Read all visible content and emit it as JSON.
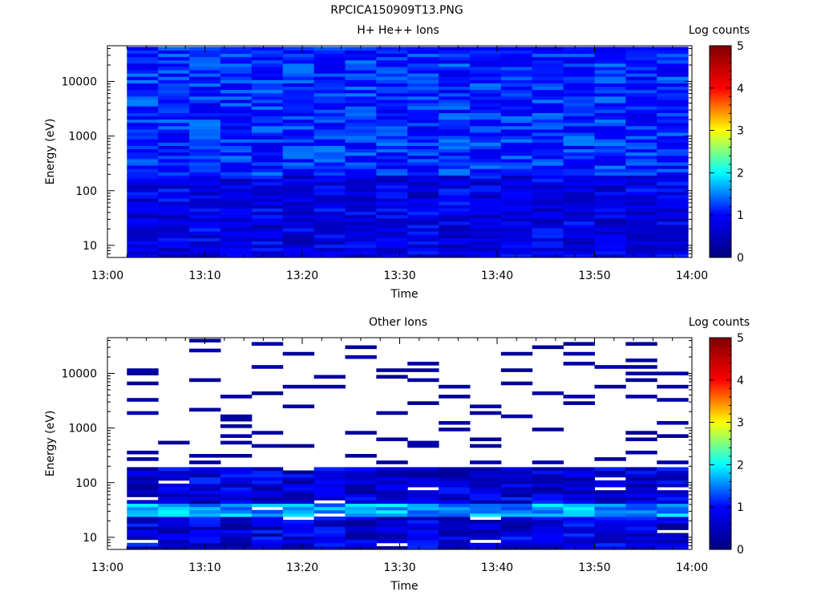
{
  "file_title": "RPCICA150909T13.PNG",
  "chart_data": [
    {
      "type": "heatmap",
      "title": "H+ He++ Ions",
      "xlabel": "Time",
      "ylabel": "Energy (eV)",
      "x_ticks": [
        "13:00",
        "13:10",
        "13:20",
        "13:30",
        "13:40",
        "13:50",
        "14:00"
      ],
      "xlim": [
        "13:00",
        "14:00"
      ],
      "y_scale": "log",
      "ylim": [
        6,
        45000
      ],
      "y_ticks": [
        {
          "value": 10,
          "label": "10"
        },
        {
          "value": 100,
          "label": "100"
        },
        {
          "value": 1000,
          "label": "1000"
        },
        {
          "value": 10000,
          "label": "10000"
        }
      ],
      "time_start": "13:02",
      "time_bin_minutes": 3.2,
      "n_time_bins": 18,
      "n_energy_bins": 64,
      "colorbar": {
        "label": "Log counts",
        "min": 0,
        "max": 5,
        "ticks": [
          "0",
          "1",
          "2",
          "3",
          "4",
          "5"
        ]
      },
      "value_summary": "Log counts roughly 0.5 to 1.5 throughout, lowest below 200 eV"
    },
    {
      "type": "heatmap",
      "title": "Other Ions",
      "xlabel": "Time",
      "ylabel": "Energy (eV)",
      "x_ticks": [
        "13:00",
        "13:10",
        "13:20",
        "13:30",
        "13:40",
        "13:50",
        "14:00"
      ],
      "xlim": [
        "13:00",
        "14:00"
      ],
      "y_scale": "log",
      "ylim": [
        6,
        45000
      ],
      "y_ticks": [
        {
          "value": 10,
          "label": "10"
        },
        {
          "value": 100,
          "label": "100"
        },
        {
          "value": 1000,
          "label": "1000"
        },
        {
          "value": 10000,
          "label": "10000"
        }
      ],
      "time_start": "13:02",
      "time_bin_minutes": 3.2,
      "n_time_bins": 18,
      "n_energy_bins": 64,
      "colorbar": {
        "label": "Log counts",
        "min": 0,
        "max": 5,
        "ticks": [
          "0",
          "1",
          "2",
          "3",
          "4",
          "5"
        ]
      },
      "value_summary": "Continuous counts below about 200 eV with a band of about 1.6 to 2.0 near 30 eV; sparse single-bin counts near 0.2 above 200 eV"
    }
  ],
  "colors": {
    "colormap": [
      "#000080",
      "#0000ff",
      "#00ffff",
      "#ffff00",
      "#ff0000",
      "#800000"
    ],
    "axes": "#000000",
    "background": "#ffffff"
  }
}
